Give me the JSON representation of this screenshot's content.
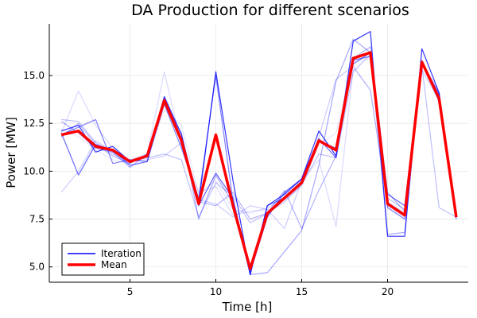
{
  "chart_data": {
    "type": "line",
    "title": "DA Production for different scenarios",
    "xlabel": "Time [h]",
    "ylabel": "Power [MW]",
    "xlim": [
      0.3,
      24.7
    ],
    "ylim": [
      4.2,
      17.7
    ],
    "x_ticks": [
      5,
      10,
      15,
      20
    ],
    "y_ticks": [
      5.0,
      7.5,
      10.0,
      12.5,
      15.0
    ],
    "y_tick_labels": [
      "5.0",
      "7.5",
      "10.0",
      "12.5",
      "15.0"
    ],
    "grid": true,
    "legend": {
      "position": "bottom-left",
      "entries": [
        "Iteration",
        "Mean"
      ]
    },
    "colors": {
      "iteration": "#0000ff",
      "mean": "#ff0000"
    },
    "x": [
      1,
      2,
      3,
      4,
      5,
      6,
      7,
      8,
      9,
      10,
      11,
      12,
      13,
      14,
      15,
      16,
      17,
      18,
      19,
      20,
      21,
      22,
      23,
      24
    ],
    "series": [
      {
        "name": "Iteration",
        "opacity": 0.8,
        "values": [
          12.1,
          12.4,
          11.0,
          11.3,
          10.5,
          10.8,
          13.9,
          11.9,
          8.3,
          15.2,
          9.5,
          4.6,
          8.2,
          8.8,
          9.6,
          12.1,
          10.8,
          16.8,
          17.3,
          6.6,
          6.6,
          16.4,
          14.1,
          7.6
        ]
      },
      {
        "name": "Iteration",
        "opacity": 0.6,
        "values": [
          12.0,
          9.8,
          11.4,
          11.1,
          10.3,
          10.5,
          13.8,
          11.6,
          8.2,
          9.9,
          8.6,
          4.7,
          7.6,
          8.9,
          9.6,
          11.7,
          10.7,
          15.8,
          16.0,
          8.8,
          8.2,
          15.7,
          14.0,
          7.6
        ]
      },
      {
        "name": "Iteration",
        "opacity": 0.5,
        "values": [
          11.9,
          12.3,
          12.7,
          10.4,
          10.6,
          10.5,
          13.5,
          11.2,
          8.6,
          15.0,
          8.4,
          4.6,
          8.2,
          8.6,
          9.5,
          11.6,
          11.2,
          15.6,
          16.2,
          8.1,
          7.5,
          15.6,
          13.9,
          7.6
        ]
      },
      {
        "name": "Iteration",
        "opacity": 0.35,
        "values": [
          12.6,
          12.0,
          11.2,
          11.0,
          10.2,
          10.9,
          13.6,
          12.0,
          7.5,
          9.8,
          8.3,
          4.6,
          4.7,
          5.8,
          6.9,
          10.3,
          14.7,
          16.9,
          16.2,
          6.7,
          6.8,
          15.7,
          14.1,
          7.5
        ]
      },
      {
        "name": "Iteration",
        "opacity": 0.3,
        "values": [
          11.8,
          12.5,
          11.4,
          10.8,
          10.4,
          10.9,
          13.7,
          11.5,
          8.4,
          8.2,
          8.9,
          7.5,
          7.8,
          9.0,
          7.0,
          9.0,
          10.8,
          15.9,
          16.5,
          8.9,
          7.9,
          15.8,
          13.6,
          7.5
        ]
      },
      {
        "name": "Iteration",
        "opacity": 0.25,
        "values": [
          12.7,
          12.6,
          11.5,
          10.9,
          10.5,
          10.7,
          10.9,
          10.6,
          7.6,
          9.4,
          8.7,
          7.3,
          7.8,
          8.4,
          9.3,
          10.9,
          10.7,
          15.2,
          16.1,
          8.6,
          8.0,
          15.5,
          8.1,
          7.6
        ]
      },
      {
        "name": "Iteration",
        "opacity": 0.2,
        "values": [
          8.9,
          10.0,
          11.6,
          11.0,
          10.5,
          10.6,
          10.8,
          11.5,
          8.5,
          8.3,
          7.6,
          8.2,
          8.0,
          7.0,
          9.5,
          11.8,
          14.8,
          15.5,
          14.2,
          8.4,
          7.8,
          15.3,
          13.7,
          7.6
        ]
      },
      {
        "name": "Iteration",
        "opacity": 0.15,
        "values": [
          12.0,
          14.2,
          12.4,
          11.2,
          10.6,
          10.9,
          15.2,
          11.3,
          8.9,
          9.2,
          7.7,
          7.9,
          8.0,
          8.7,
          9.5,
          10.6,
          7.1,
          15.4,
          14.3,
          8.2,
          7.6,
          15.6,
          13.8,
          7.6
        ]
      },
      {
        "name": "Iteration",
        "opacity": 0.1,
        "values": [
          12.2,
          11.8,
          11.1,
          10.6,
          10.4,
          10.9,
          13.2,
          12.4,
          8.8,
          9.5,
          8.0,
          7.8,
          8.1,
          8.5,
          9.2,
          11.4,
          12.0,
          15.7,
          15.9,
          8.3,
          7.7,
          15.6,
          13.9,
          7.6
        ]
      },
      {
        "name": "Mean",
        "values": [
          11.9,
          12.1,
          11.3,
          11.1,
          10.5,
          10.8,
          13.7,
          11.6,
          8.3,
          11.9,
          8.2,
          4.9,
          7.8,
          8.6,
          9.4,
          11.6,
          11.1,
          15.9,
          16.2,
          8.3,
          7.7,
          15.7,
          13.8,
          7.6
        ]
      }
    ]
  }
}
